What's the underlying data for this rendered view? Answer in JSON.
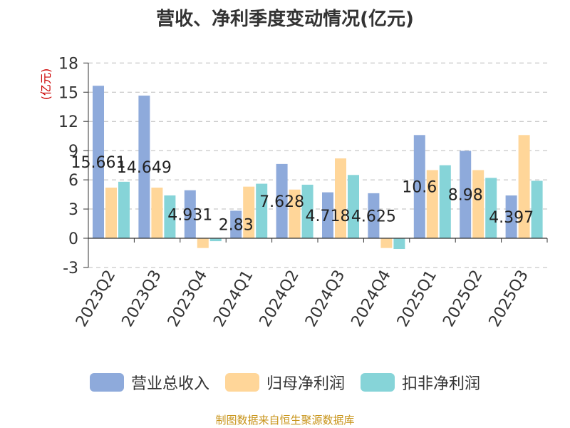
{
  "chart_data": {
    "type": "bar",
    "title": "营收、净利季度变动情况(亿元)",
    "ylabel": "(亿元)",
    "categories": [
      "2023Q2",
      "2023Q3",
      "2023Q4",
      "2024Q1",
      "2024Q2",
      "2024Q3",
      "2024Q4",
      "2025Q1",
      "2025Q2",
      "2025Q3"
    ],
    "yticks": [
      18,
      15,
      12,
      9,
      6,
      3,
      0,
      -3
    ],
    "ylim": [
      -3,
      18
    ],
    "grid": true,
    "legend_position": "bottom",
    "series": [
      {
        "name": "营业总收入",
        "color": "#8eaadb",
        "values": [
          15.661,
          14.649,
          4.931,
          2.83,
          7.628,
          4.718,
          4.625,
          10.6,
          8.98,
          4.397
        ],
        "labels": [
          "15.661",
          "14.649",
          "4.931",
          "2.83",
          "7.628",
          "4.718",
          "4.625",
          "10.6",
          "8.98",
          "4.397"
        ]
      },
      {
        "name": "归母净利润",
        "color": "#ffd699",
        "values": [
          5.2,
          5.2,
          -1.0,
          5.3,
          5.0,
          8.2,
          -1.0,
          7.0,
          7.0,
          10.6
        ]
      },
      {
        "name": "扣非净利润",
        "color": "#86d4d8",
        "values": [
          5.8,
          4.4,
          -0.3,
          5.6,
          5.5,
          6.5,
          -1.1,
          7.5,
          6.2,
          5.9
        ]
      }
    ]
  },
  "source": "制图数据来自恒生聚源数据库"
}
